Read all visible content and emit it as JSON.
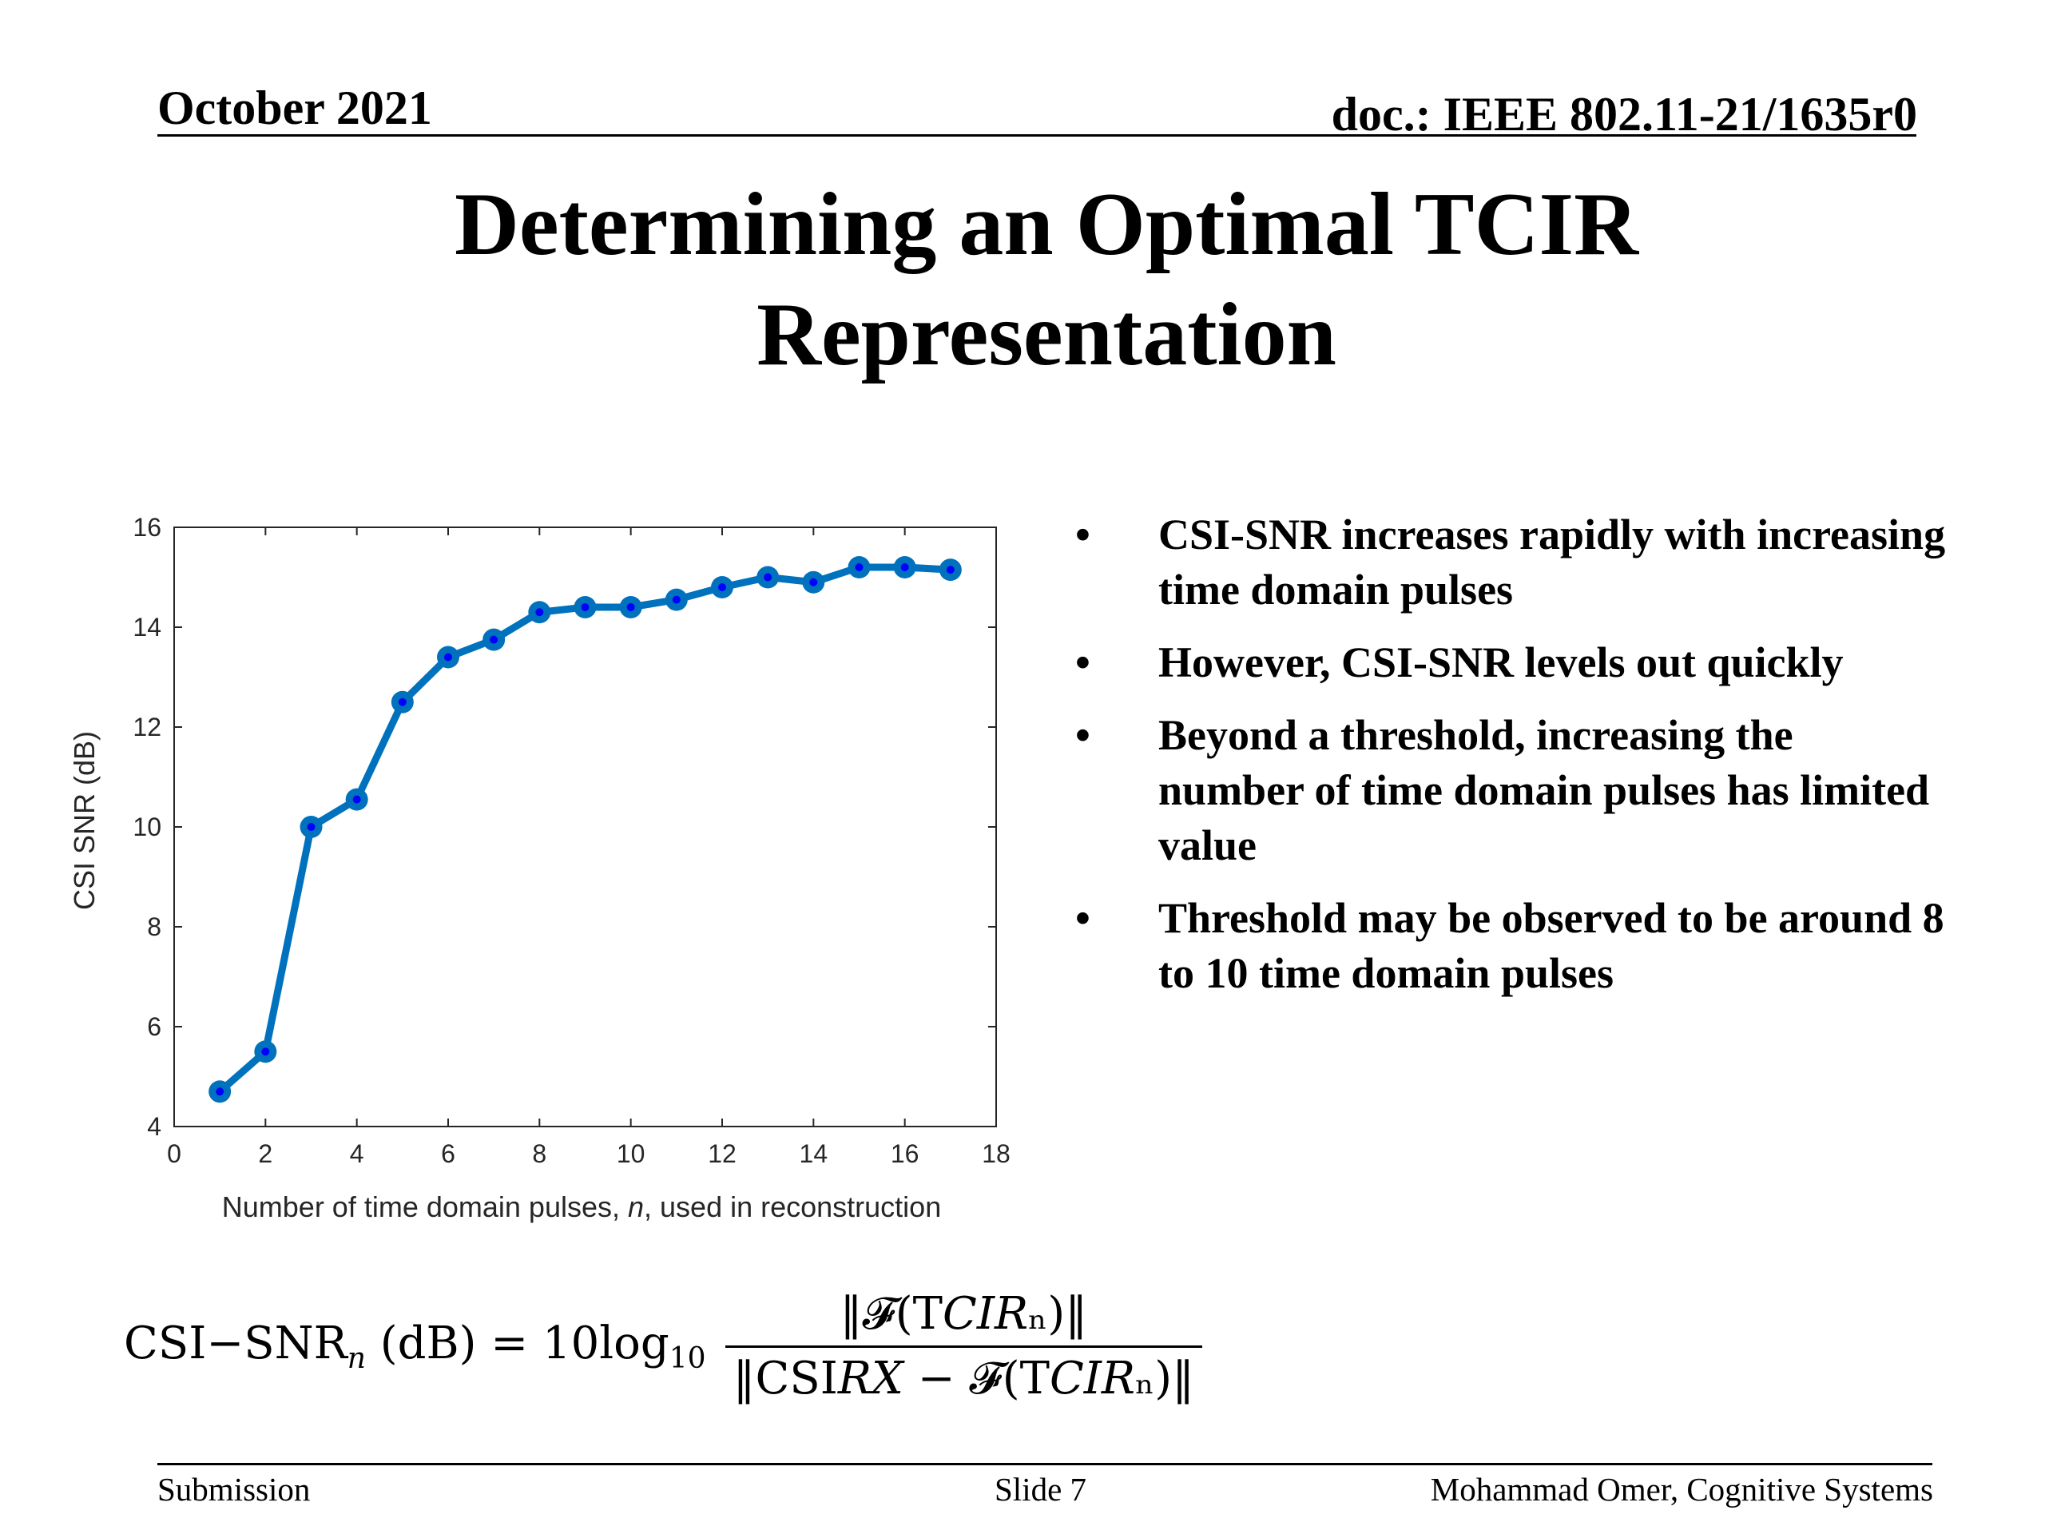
{
  "header": {
    "date": "October 2021",
    "doc": "doc.: IEEE 802.11-21/1635r0"
  },
  "title": {
    "line1": "Determining an Optimal TCIR",
    "line2": "Representation"
  },
  "bullets": [
    "CSI-SNR increases rapidly with increasing time domain pulses",
    "However, CSI-SNR levels out quickly",
    "Beyond a threshold, increasing the number of time domain pulses has limited value",
    "Threshold may be observed to be around 8 to 10 time domain pulses"
  ],
  "formula": {
    "lhs_text": "CSI−SNR",
    "lhs_sub": "n",
    "lhs_unit": " (dB) = 10log",
    "lhs_log_sub": "10",
    "numerator": "‖𝓕(T𝐶𝐼𝑅ₙ)‖",
    "denominator": "‖CSI𝑅𝑋 − 𝓕(T𝐶𝐼𝑅ₙ)‖"
  },
  "footer": {
    "left": "Submission",
    "center": "Slide 7",
    "right": "Mohammad Omer, Cognitive Systems"
  },
  "chart_data": {
    "type": "line",
    "title": "",
    "xlabel_pre": "Number of time domain pulses, ",
    "xlabel_var": "n",
    "xlabel_post": ", used in reconstruction",
    "ylabel": "CSI SNR (dB)",
    "xlim": [
      0,
      18
    ],
    "ylim": [
      4,
      16
    ],
    "xticks": [
      0,
      2,
      4,
      6,
      8,
      10,
      12,
      14,
      16,
      18
    ],
    "yticks": [
      4,
      6,
      8,
      10,
      12,
      14,
      16
    ],
    "grid": false,
    "line_color": "#0072BD",
    "marker_color": "#0000FF",
    "x": [
      1,
      2,
      3,
      4,
      5,
      6,
      7,
      8,
      9,
      10,
      11,
      12,
      13,
      14,
      15,
      16,
      17
    ],
    "y": [
      4.7,
      5.5,
      10.0,
      10.55,
      12.5,
      13.4,
      13.75,
      14.3,
      14.4,
      14.4,
      14.55,
      14.8,
      15.0,
      14.9,
      15.2,
      15.2,
      15.15
    ]
  }
}
